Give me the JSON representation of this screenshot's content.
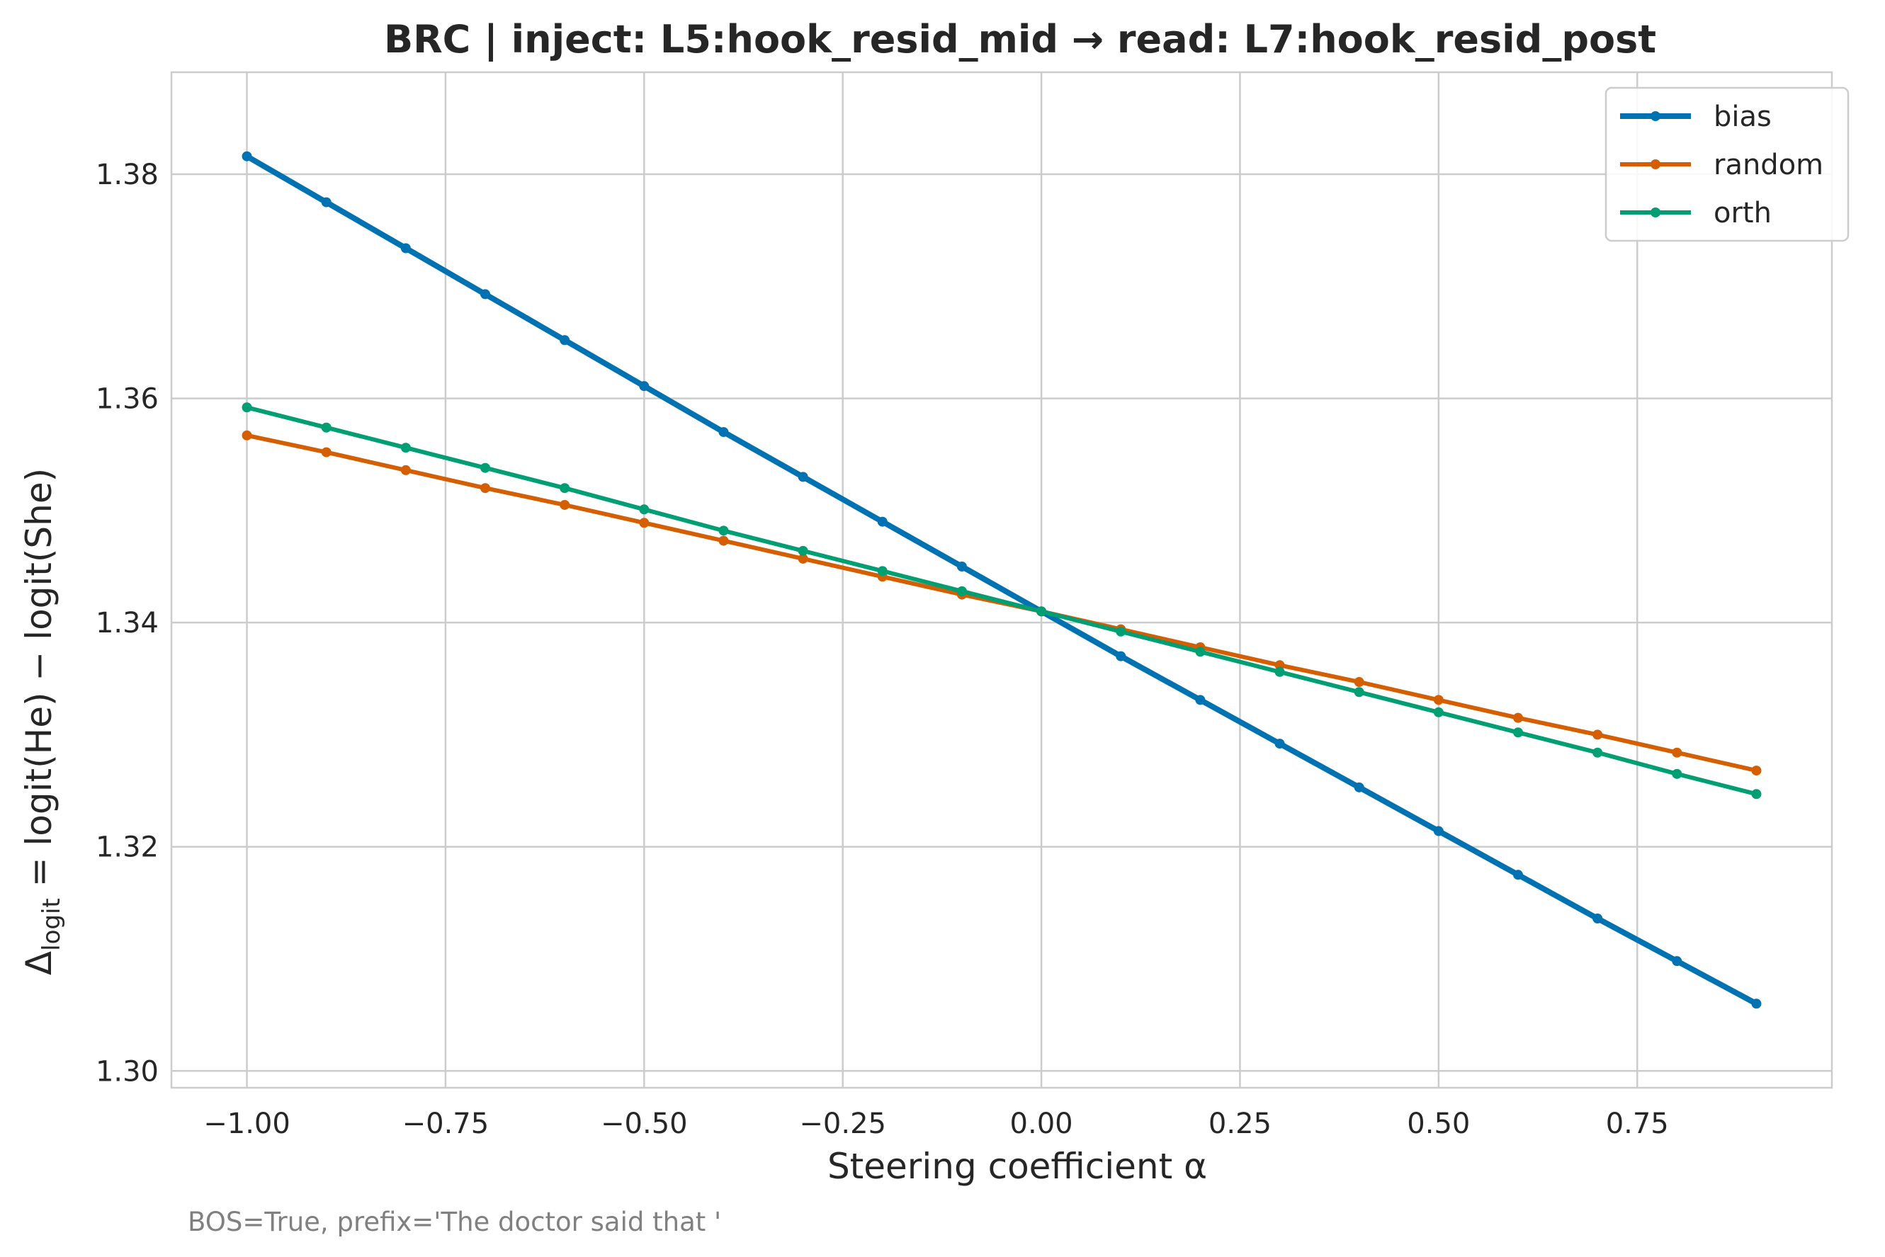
{
  "chart_data": {
    "type": "line",
    "title": "BRC | inject: L5:hook_resid_mid → read: L7:hook_resid_post",
    "xlabel": "Steering coefficient α",
    "ylabel_parts": {
      "delta": "Δ",
      "sub": "logit",
      "rest": " = logit(He) − logit(She)"
    },
    "footnote": "BOS=True, prefix='The doctor said that '",
    "xlim": [
      -1.095,
      0.995
    ],
    "ylim": [
      1.2985,
      1.3891
    ],
    "grid": true,
    "legend_position": "top-right",
    "x_ticks": [
      -1.0,
      -0.75,
      -0.5,
      -0.25,
      0.0,
      0.25,
      0.5,
      0.75
    ],
    "x_tick_labels": [
      "−1.00",
      "−0.75",
      "−0.50",
      "−0.25",
      "0.00",
      "0.25",
      "0.50",
      "0.75"
    ],
    "y_ticks": [
      1.3,
      1.32,
      1.34,
      1.36,
      1.38
    ],
    "y_tick_labels": [
      "1.30",
      "1.32",
      "1.34",
      "1.36",
      "1.38"
    ],
    "x": [
      -1.0,
      -0.9,
      -0.8,
      -0.7,
      -0.6,
      -0.5,
      -0.4,
      -0.3,
      -0.2,
      -0.1,
      0.0,
      0.1,
      0.2,
      0.3,
      0.4,
      0.5,
      0.6,
      0.7,
      0.8,
      0.9
    ],
    "series": [
      {
        "name": "bias",
        "color": "#0072b2",
        "values": [
          1.3816,
          1.3775,
          1.3734,
          1.3693,
          1.3652,
          1.3611,
          1.357,
          1.353,
          1.349,
          1.345,
          1.341,
          1.337,
          1.3331,
          1.3292,
          1.3253,
          1.3214,
          1.3175,
          1.3136,
          1.3098,
          1.306
        ]
      },
      {
        "name": "random",
        "color": "#d55e00",
        "values": [
          1.3567,
          1.3552,
          1.3536,
          1.352,
          1.3505,
          1.3489,
          1.3473,
          1.3457,
          1.3441,
          1.3425,
          1.341,
          1.3394,
          1.3378,
          1.3362,
          1.3347,
          1.3331,
          1.3315,
          1.33,
          1.3284,
          1.3268
        ]
      },
      {
        "name": "orth",
        "color": "#009e73",
        "values": [
          1.3592,
          1.3574,
          1.3556,
          1.3538,
          1.352,
          1.3501,
          1.3482,
          1.3464,
          1.3446,
          1.3428,
          1.341,
          1.3392,
          1.3374,
          1.3356,
          1.3338,
          1.332,
          1.3302,
          1.3284,
          1.3265,
          1.3247
        ]
      }
    ]
  }
}
